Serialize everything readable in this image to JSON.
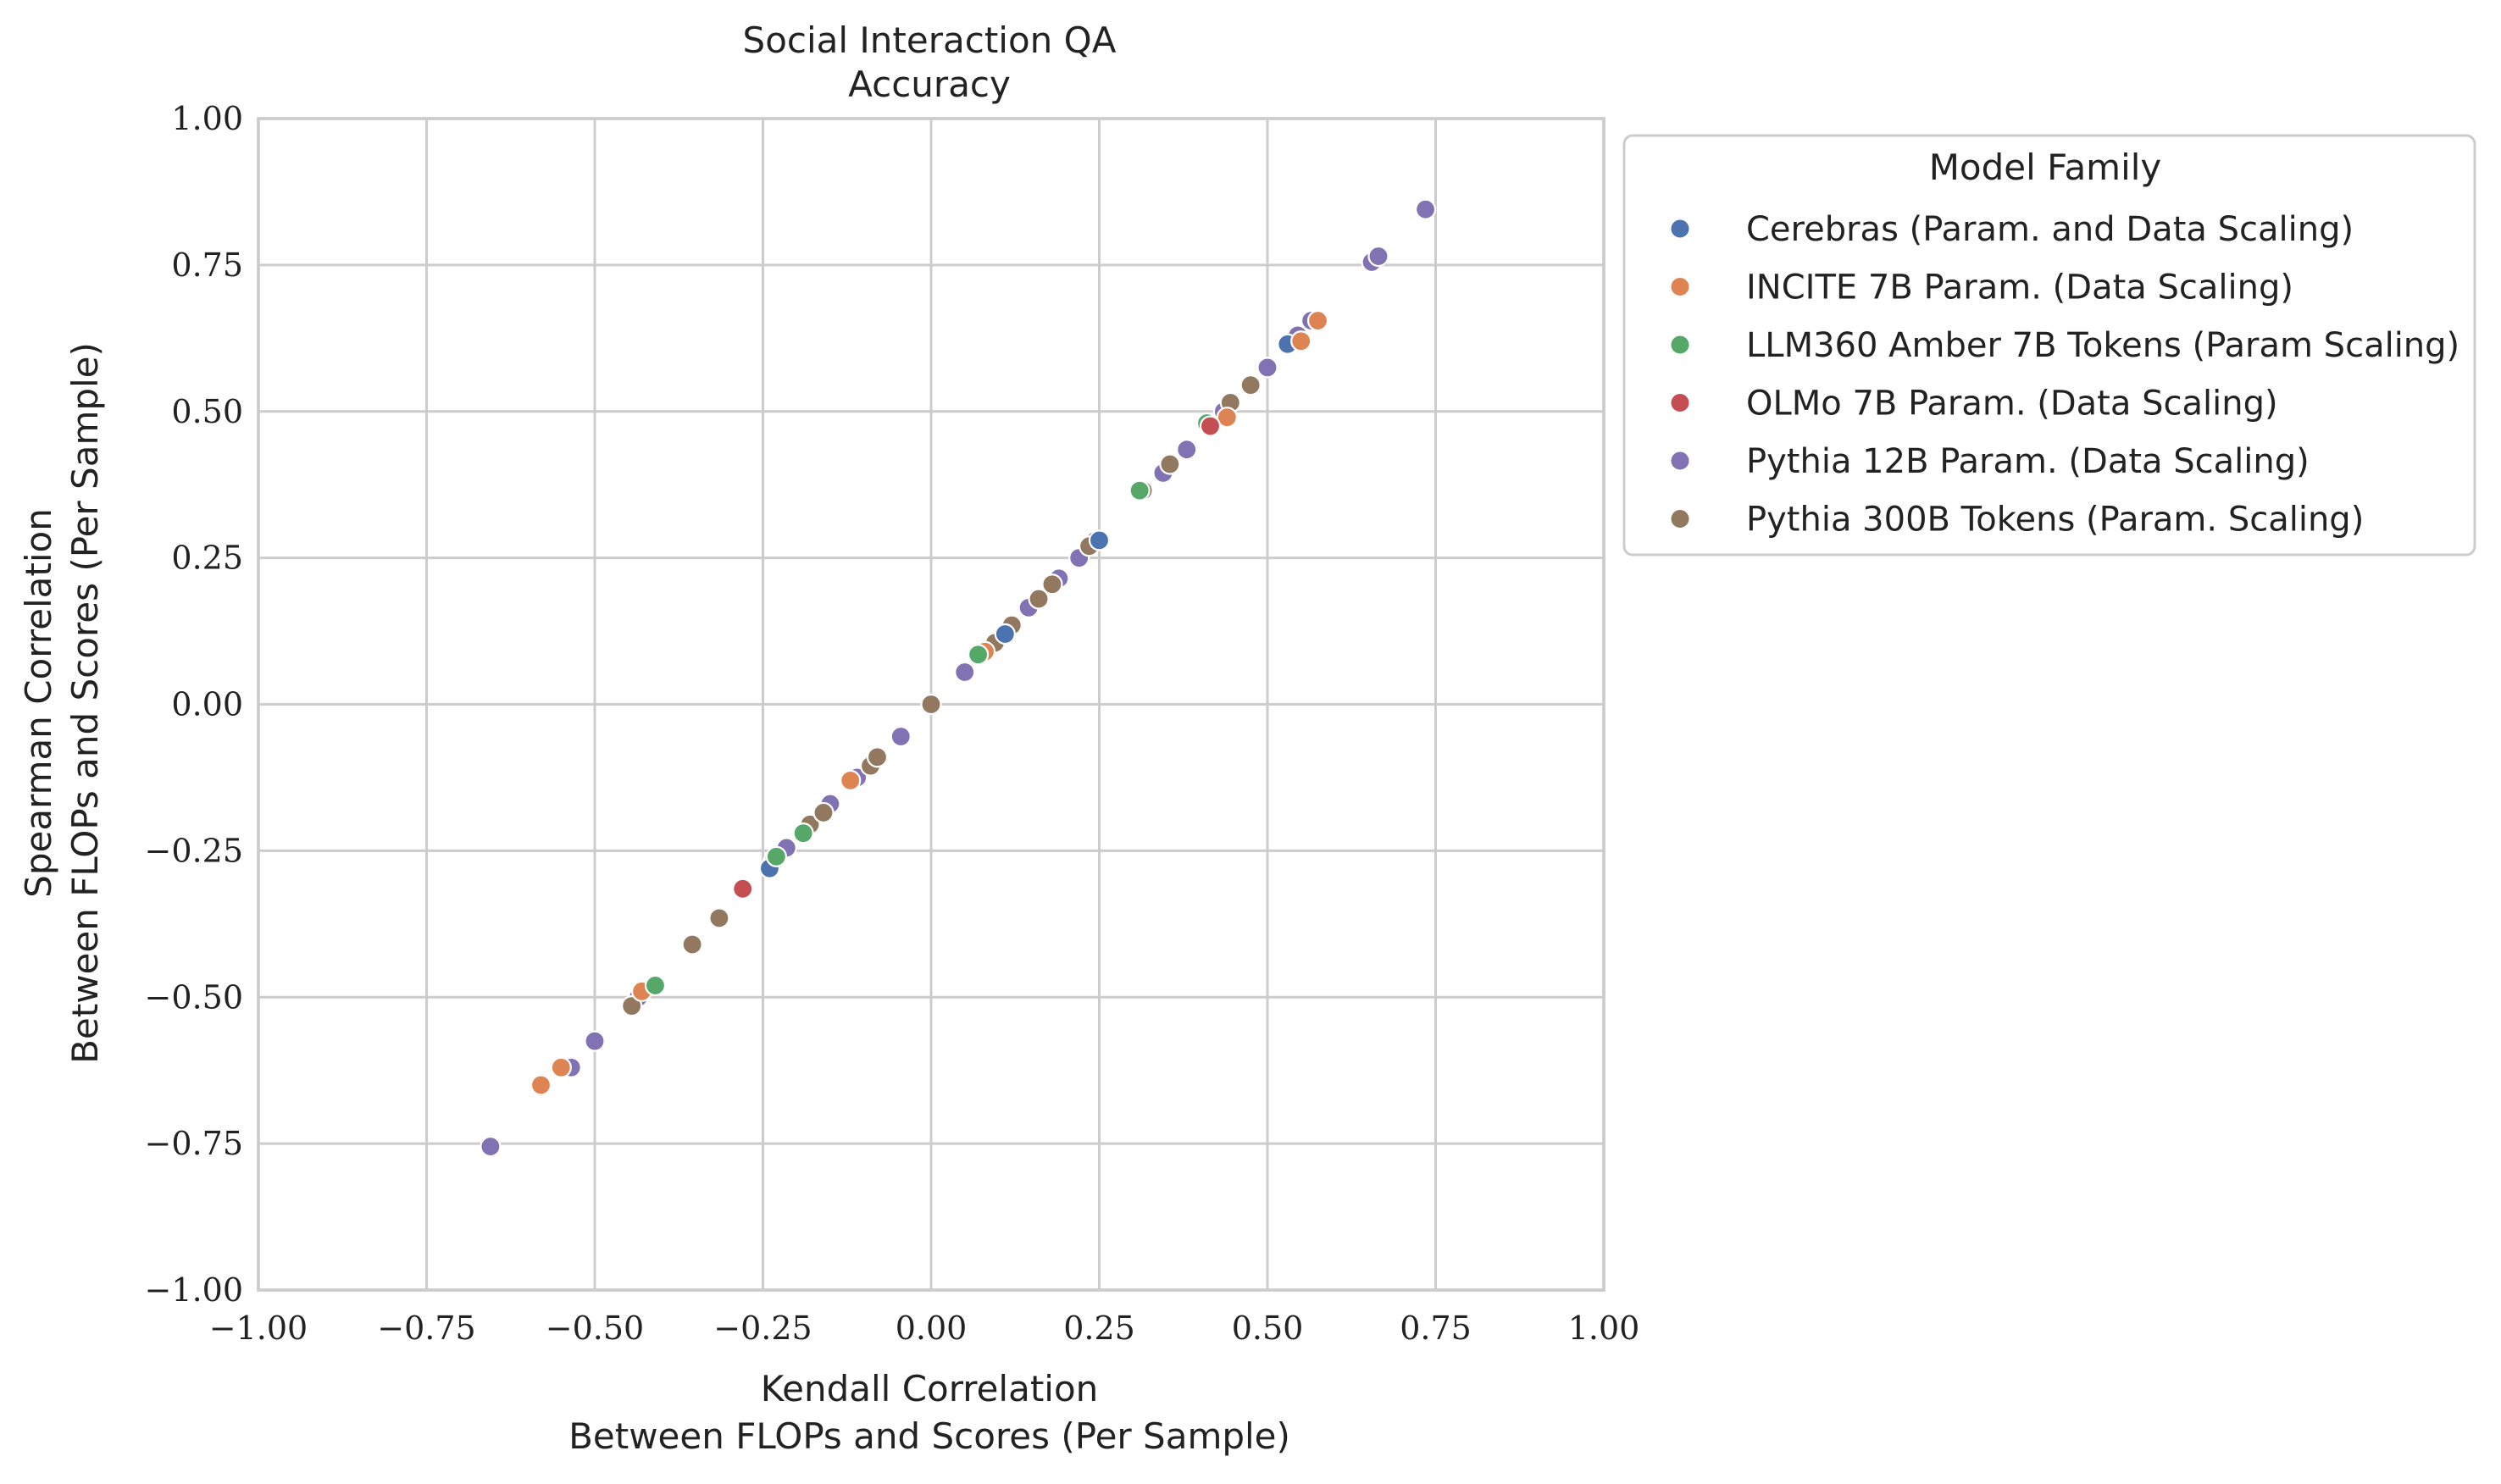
{
  "chart_data": {
    "type": "scatter",
    "title": [
      "Social Interaction QA",
      "Accuracy"
    ],
    "xlabel": [
      "Kendall Correlation",
      "Between FLOPs and Scores (Per Sample)"
    ],
    "ylabel": [
      "Spearman Correlation",
      "Between FLOPs and Scores (Per Sample)"
    ],
    "xlim": [
      -1.0,
      1.0
    ],
    "ylim": [
      -1.0,
      1.0
    ],
    "xticks": [
      -1.0,
      -0.75,
      -0.5,
      -0.25,
      0.0,
      0.25,
      0.5,
      0.75,
      1.0
    ],
    "yticks": [
      -1.0,
      -0.75,
      -0.5,
      -0.25,
      0.0,
      0.25,
      0.5,
      0.75,
      1.0
    ],
    "xtick_labels": [
      "−1.00",
      "−0.75",
      "−0.50",
      "−0.25",
      "0.00",
      "0.25",
      "0.50",
      "0.75",
      "1.00"
    ],
    "ytick_labels": [
      "−1.00",
      "−0.75",
      "−0.50",
      "−0.25",
      "0.00",
      "0.25",
      "0.50",
      "0.75",
      "1.00"
    ],
    "grid": true,
    "legend": {
      "title": "Model Family",
      "placement": "outside-right-top"
    },
    "series": [
      {
        "name": "Cerebras (Param. and Data Scaling)",
        "color": "#4c72b0",
        "points": [
          [
            0.11,
            0.12
          ],
          [
            0.53,
            0.615
          ],
          [
            -0.24,
            -0.28
          ],
          [
            0.25,
            0.28
          ]
        ]
      },
      {
        "name": "INCITE 7B Param. (Data Scaling)",
        "color": "#dd8452",
        "points": [
          [
            -0.58,
            -0.65
          ],
          [
            -0.55,
            -0.62
          ],
          [
            -0.43,
            -0.49
          ],
          [
            0.44,
            0.49
          ],
          [
            0.575,
            0.655
          ],
          [
            0.55,
            0.62
          ],
          [
            0.08,
            0.09
          ],
          [
            -0.12,
            -0.13
          ]
        ]
      },
      {
        "name": "LLM360 Amber 7B Tokens (Param Scaling)",
        "color": "#55a868",
        "points": [
          [
            -0.41,
            -0.48
          ],
          [
            -0.19,
            -0.22
          ],
          [
            0.31,
            0.365
          ],
          [
            0.41,
            0.48
          ],
          [
            -0.23,
            -0.26
          ],
          [
            0.07,
            0.085
          ]
        ]
      },
      {
        "name": "OLMo 7B Param. (Data Scaling)",
        "color": "#c44e52",
        "points": [
          [
            -0.28,
            -0.315
          ],
          [
            0.415,
            0.475
          ]
        ]
      },
      {
        "name": "Pythia 12B Param. (Data Scaling)",
        "color": "#8172b3",
        "points": [
          [
            -0.655,
            -0.755
          ],
          [
            -0.535,
            -0.62
          ],
          [
            -0.5,
            -0.575
          ],
          [
            -0.435,
            -0.5
          ],
          [
            -0.24,
            -0.28
          ],
          [
            -0.215,
            -0.245
          ],
          [
            -0.15,
            -0.17
          ],
          [
            -0.11,
            -0.125
          ],
          [
            -0.045,
            -0.055
          ],
          [
            0.05,
            0.055
          ],
          [
            0.075,
            0.085
          ],
          [
            0.11,
            0.12
          ],
          [
            0.145,
            0.165
          ],
          [
            0.19,
            0.215
          ],
          [
            0.22,
            0.25
          ],
          [
            0.245,
            0.28
          ],
          [
            0.345,
            0.395
          ],
          [
            0.38,
            0.435
          ],
          [
            0.435,
            0.5
          ],
          [
            0.5,
            0.575
          ],
          [
            0.535,
            0.62
          ],
          [
            0.545,
            0.63
          ],
          [
            0.565,
            0.655
          ],
          [
            0.655,
            0.755
          ],
          [
            0.665,
            0.765
          ],
          [
            0.735,
            0.845
          ]
        ]
      },
      {
        "name": "Pythia 300B Tokens (Param. Scaling)",
        "color": "#937860",
        "points": [
          [
            -0.445,
            -0.515
          ],
          [
            -0.355,
            -0.41
          ],
          [
            -0.315,
            -0.365
          ],
          [
            -0.235,
            -0.27
          ],
          [
            -0.18,
            -0.205
          ],
          [
            -0.16,
            -0.185
          ],
          [
            -0.09,
            -0.105
          ],
          [
            -0.08,
            -0.09
          ],
          [
            0.0,
            0.0
          ],
          [
            0.085,
            0.095
          ],
          [
            0.095,
            0.105
          ],
          [
            0.12,
            0.135
          ],
          [
            0.16,
            0.18
          ],
          [
            0.18,
            0.205
          ],
          [
            0.235,
            0.27
          ],
          [
            0.315,
            0.365
          ],
          [
            0.355,
            0.41
          ],
          [
            0.445,
            0.515
          ],
          [
            0.475,
            0.545
          ]
        ]
      }
    ]
  }
}
